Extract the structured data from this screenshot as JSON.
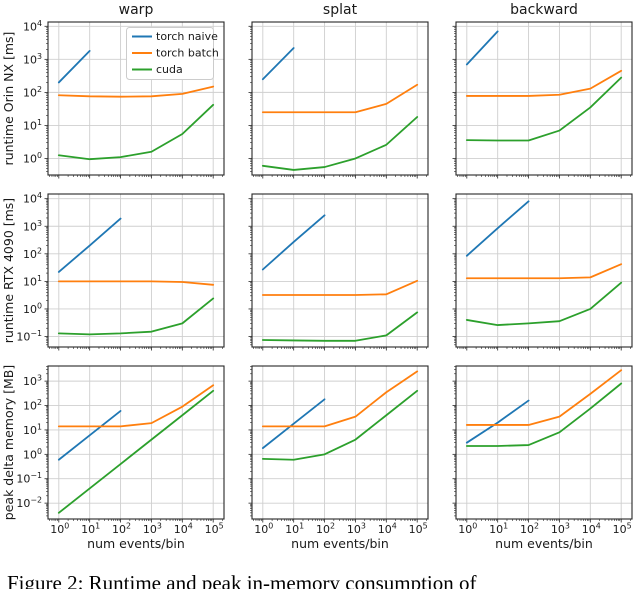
{
  "figure": {
    "caption_partial": "Figure 2: Runtime and peak in-memory consumption of",
    "colors": {
      "background": "#ffffff",
      "grid": "#cfcfcf",
      "spine": "#262626",
      "text": "#1a1a1a"
    }
  },
  "chart_data": {
    "type": "line",
    "layout": "3x3 grid of log-log line plots",
    "x_scale": "log",
    "y_scale": "log",
    "grid": true,
    "xlabel": "num events/bin",
    "x_tick_exponents": [
      0,
      1,
      2,
      3,
      4,
      5
    ],
    "columns": [
      "warp",
      "splat",
      "backward"
    ],
    "legend": {
      "position": "upper right of first panel",
      "entries": [
        {
          "name": "torch naive",
          "color": "#1f77b4"
        },
        {
          "name": "torch batch",
          "color": "#ff7f0e"
        },
        {
          "name": "cuda",
          "color": "#2ca02c"
        }
      ]
    },
    "rows": [
      {
        "ylabel": "runtime Orin NX [ms]",
        "y_tick_exponents": [
          4,
          3,
          2,
          1,
          0
        ],
        "ylim_log10": [
          -0.5,
          4.13
        ]
      },
      {
        "ylabel": "runtime RTX 4090 [ms]",
        "y_tick_exponents": [
          4,
          3,
          2,
          1,
          0,
          -1
        ],
        "ylim_log10": [
          -1.38,
          4.17
        ]
      },
      {
        "ylabel": "peak delta memory [MB]",
        "y_tick_exponents": [
          3,
          2,
          1,
          0,
          -1,
          -2
        ],
        "ylim_log10": [
          -2.65,
          3.62
        ]
      }
    ],
    "panels": [
      {
        "row": 0,
        "col": 0,
        "title": "warp",
        "series": [
          {
            "name": "torch naive",
            "x": [
              1,
              10
            ],
            "y": [
              200,
              1800
            ]
          },
          {
            "name": "torch batch",
            "x": [
              1,
              10,
              100,
              1000,
              10000,
              100000
            ],
            "y": [
              82,
              76,
              74,
              76,
              90,
              150
            ]
          },
          {
            "name": "cuda",
            "x": [
              1,
              10,
              100,
              1000,
              10000,
              100000
            ],
            "y": [
              1.25,
              0.95,
              1.1,
              1.6,
              5.5,
              42
            ]
          }
        ]
      },
      {
        "row": 0,
        "col": 1,
        "title": "splat",
        "series": [
          {
            "name": "torch naive",
            "x": [
              1,
              10
            ],
            "y": [
              250,
              2200
            ]
          },
          {
            "name": "torch batch",
            "x": [
              1,
              10,
              100,
              1000,
              10000,
              100000
            ],
            "y": [
              25,
              25,
              25,
              25,
              45,
              170
            ]
          },
          {
            "name": "cuda",
            "x": [
              1,
              10,
              100,
              1000,
              10000,
              100000
            ],
            "y": [
              0.6,
              0.45,
              0.55,
              1.0,
              2.6,
              18
            ]
          }
        ]
      },
      {
        "row": 0,
        "col": 2,
        "title": "backward",
        "series": [
          {
            "name": "torch naive",
            "x": [
              1,
              10
            ],
            "y": [
              700,
              7000
            ]
          },
          {
            "name": "torch batch",
            "x": [
              1,
              10,
              100,
              1000,
              10000,
              100000
            ],
            "y": [
              78,
              78,
              78,
              85,
              130,
              450
            ]
          },
          {
            "name": "cuda",
            "x": [
              1,
              10,
              100,
              1000,
              10000,
              100000
            ],
            "y": [
              3.6,
              3.5,
              3.5,
              7,
              35,
              280
            ]
          }
        ]
      },
      {
        "row": 1,
        "col": 0,
        "title": "warp",
        "series": [
          {
            "name": "torch naive",
            "x": [
              1,
              10,
              100
            ],
            "y": [
              22,
              200,
              1900
            ]
          },
          {
            "name": "torch batch",
            "x": [
              1,
              10,
              100,
              1000,
              10000,
              100000
            ],
            "y": [
              10,
              10,
              10,
              10,
              9.5,
              7.5
            ]
          },
          {
            "name": "cuda",
            "x": [
              1,
              10,
              100,
              1000,
              10000,
              100000
            ],
            "y": [
              0.13,
              0.12,
              0.13,
              0.15,
              0.3,
              2.4
            ]
          }
        ]
      },
      {
        "row": 1,
        "col": 1,
        "title": "splat",
        "series": [
          {
            "name": "torch naive",
            "x": [
              1,
              10,
              100
            ],
            "y": [
              27,
              270,
              2500
            ]
          },
          {
            "name": "torch batch",
            "x": [
              1,
              10,
              100,
              1000,
              10000,
              100000
            ],
            "y": [
              3.2,
              3.2,
              3.2,
              3.2,
              3.4,
              10.5
            ]
          },
          {
            "name": "cuda",
            "x": [
              1,
              10,
              100,
              1000,
              10000,
              100000
            ],
            "y": [
              0.075,
              0.072,
              0.07,
              0.07,
              0.11,
              0.75
            ]
          }
        ]
      },
      {
        "row": 1,
        "col": 2,
        "title": "backward",
        "series": [
          {
            "name": "torch naive",
            "x": [
              1,
              10,
              100
            ],
            "y": [
              85,
              850,
              8000
            ]
          },
          {
            "name": "torch batch",
            "x": [
              1,
              10,
              100,
              1000,
              10000,
              100000
            ],
            "y": [
              13,
              13,
              13,
              13,
              14,
              42
            ]
          },
          {
            "name": "cuda",
            "x": [
              1,
              10,
              100,
              1000,
              10000,
              100000
            ],
            "y": [
              0.4,
              0.26,
              0.3,
              0.36,
              1.0,
              9
            ]
          }
        ]
      },
      {
        "row": 2,
        "col": 0,
        "title": "warp",
        "series": [
          {
            "name": "torch naive",
            "x": [
              1,
              10,
              100
            ],
            "y": [
              0.6,
              6,
              60
            ]
          },
          {
            "name": "torch batch",
            "x": [
              1,
              10,
              100,
              1000,
              10000,
              100000
            ],
            "y": [
              14,
              14,
              14,
              19,
              90,
              680
            ]
          },
          {
            "name": "cuda",
            "x": [
              1,
              10,
              100,
              1000,
              10000,
              100000
            ],
            "y": [
              0.004,
              0.04,
              0.4,
              4,
              40,
              400
            ]
          }
        ]
      },
      {
        "row": 2,
        "col": 1,
        "title": "splat",
        "series": [
          {
            "name": "torch naive",
            "x": [
              1,
              10,
              100
            ],
            "y": [
              1.8,
              18,
              180
            ]
          },
          {
            "name": "torch batch",
            "x": [
              1,
              10,
              100,
              1000,
              10000,
              100000
            ],
            "y": [
              14,
              14,
              14,
              35,
              350,
              2500
            ]
          },
          {
            "name": "cuda",
            "x": [
              1,
              10,
              100,
              1000,
              10000,
              100000
            ],
            "y": [
              0.65,
              0.6,
              1.0,
              4,
              40,
              400
            ]
          }
        ]
      },
      {
        "row": 2,
        "col": 2,
        "title": "backward",
        "series": [
          {
            "name": "torch naive",
            "x": [
              1,
              10,
              100
            ],
            "y": [
              3,
              20,
              160
            ]
          },
          {
            "name": "torch batch",
            "x": [
              1,
              10,
              100,
              1000,
              10000,
              100000
            ],
            "y": [
              16,
              16,
              16,
              35,
              300,
              2800
            ]
          },
          {
            "name": "cuda",
            "x": [
              1,
              10,
              100,
              1000,
              10000,
              100000
            ],
            "y": [
              2.2,
              2.2,
              2.4,
              8,
              75,
              800
            ]
          }
        ]
      }
    ]
  }
}
